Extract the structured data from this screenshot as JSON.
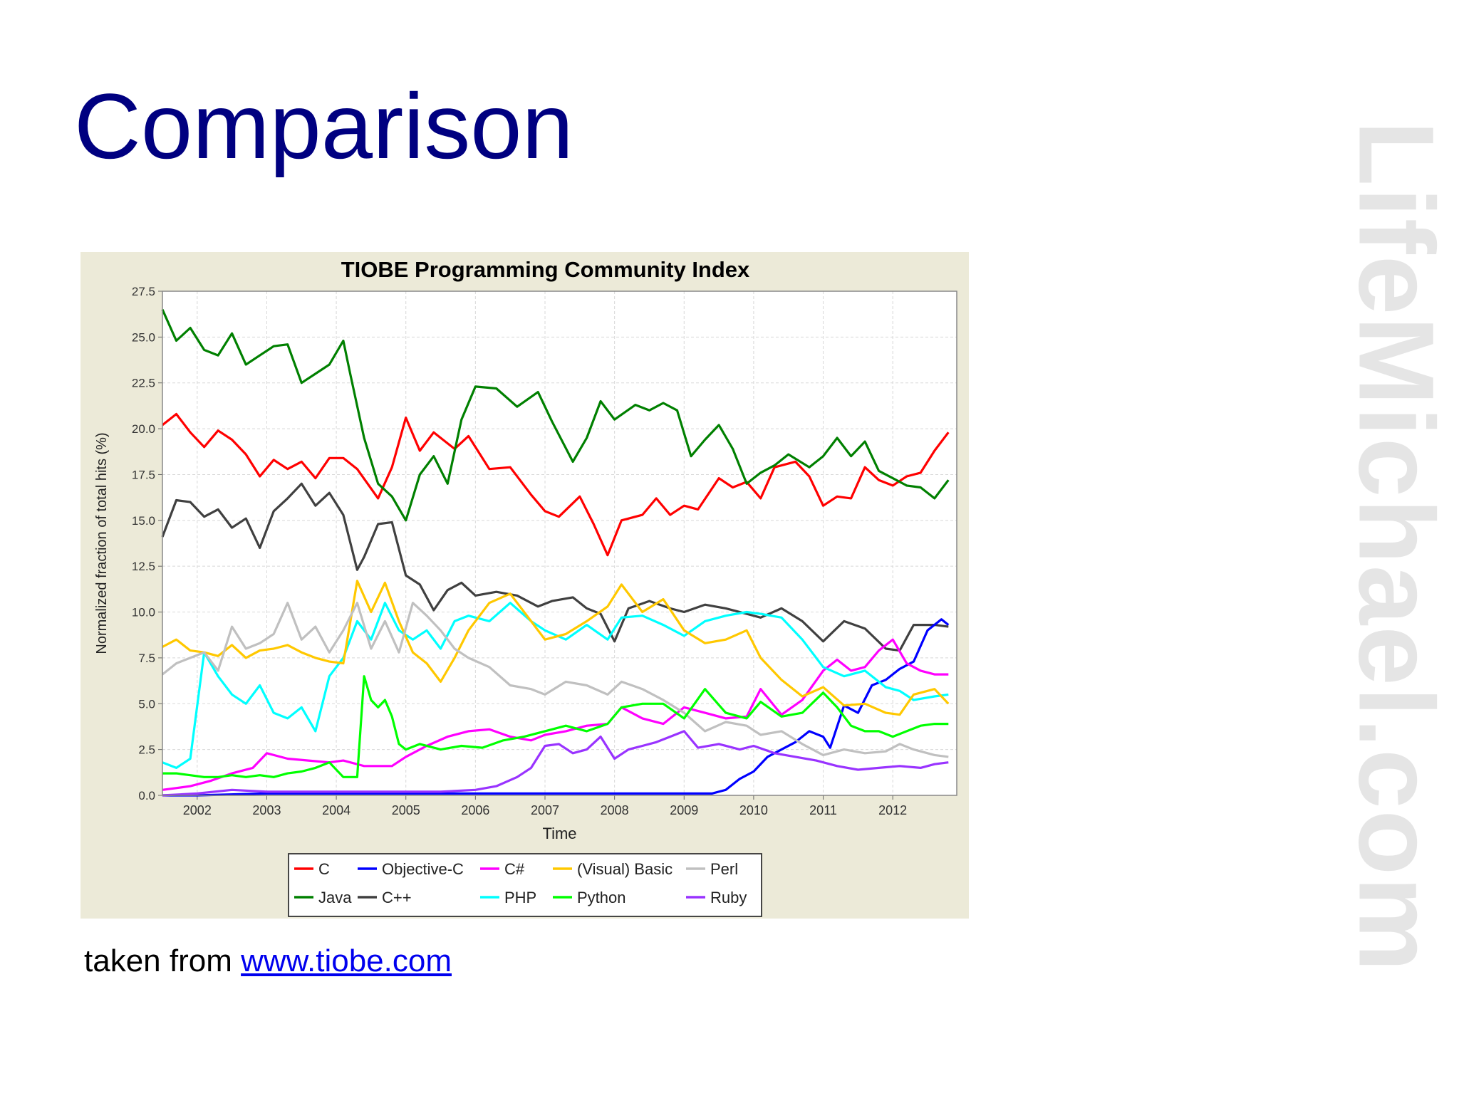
{
  "slide": {
    "title": "Comparison",
    "caption_prefix": "taken from ",
    "caption_link": "www.tiobe.com",
    "watermark": "LifeMichael.com"
  },
  "chart_data": {
    "type": "line",
    "title": "TIOBE Programming Community Index",
    "xlabel": "Time",
    "ylabel": "Normalized fraction of total hits (%)",
    "xlim": [
      2001.5,
      2012.92
    ],
    "ylim": [
      0,
      27.5
    ],
    "x_ticks": [
      "2002",
      "2003",
      "2004",
      "2005",
      "2006",
      "2007",
      "2008",
      "2009",
      "2010",
      "2011",
      "2012"
    ],
    "y_ticks": [
      "0.0",
      "2.5",
      "5.0",
      "7.5",
      "10.0",
      "12.5",
      "15.0",
      "17.5",
      "20.0",
      "22.5",
      "25.0",
      "27.5"
    ],
    "grid": true,
    "legend_position": "bottom",
    "series": [
      {
        "name": "C",
        "color": "#ff0000",
        "x": [
          2001.5,
          2001.7,
          2001.9,
          2002.1,
          2002.3,
          2002.5,
          2002.7,
          2002.9,
          2003.1,
          2003.3,
          2003.5,
          2003.7,
          2003.9,
          2004.1,
          2004.3,
          2004.6,
          2004.8,
          2005.0,
          2005.2,
          2005.4,
          2005.7,
          2005.9,
          2006.2,
          2006.5,
          2006.8,
          2007.0,
          2007.2,
          2007.5,
          2007.7,
          2007.9,
          2008.1,
          2008.4,
          2008.6,
          2008.8,
          2009.0,
          2009.2,
          2009.5,
          2009.7,
          2009.9,
          2010.1,
          2010.3,
          2010.6,
          2010.8,
          2011.0,
          2011.2,
          2011.4,
          2011.6,
          2011.8,
          2012.0,
          2012.2,
          2012.4,
          2012.6,
          2012.8
        ],
        "values": [
          20.2,
          20.8,
          19.8,
          19.0,
          19.9,
          19.4,
          18.6,
          17.4,
          18.3,
          17.8,
          18.2,
          17.3,
          18.4,
          18.4,
          17.8,
          16.2,
          17.9,
          20.6,
          18.8,
          19.8,
          18.9,
          19.6,
          17.8,
          17.9,
          16.4,
          15.5,
          15.2,
          16.3,
          14.8,
          13.1,
          15.0,
          15.3,
          16.2,
          15.3,
          15.8,
          15.6,
          17.3,
          16.8,
          17.1,
          16.2,
          17.9,
          18.2,
          17.4,
          15.8,
          16.3,
          16.2,
          17.9,
          17.2,
          16.9,
          17.4,
          17.6,
          18.8,
          19.8
        ]
      },
      {
        "name": "Java",
        "color": "#008000",
        "x": [
          2001.5,
          2001.7,
          2001.9,
          2002.1,
          2002.3,
          2002.5,
          2002.7,
          2002.9,
          2003.1,
          2003.3,
          2003.5,
          2003.7,
          2003.9,
          2004.1,
          2004.2,
          2004.4,
          2004.6,
          2004.8,
          2005.0,
          2005.2,
          2005.4,
          2005.6,
          2005.8,
          2006.0,
          2006.3,
          2006.6,
          2006.9,
          2007.1,
          2007.4,
          2007.6,
          2007.8,
          2008.0,
          2008.3,
          2008.5,
          2008.7,
          2008.9,
          2009.1,
          2009.3,
          2009.5,
          2009.7,
          2009.9,
          2010.1,
          2010.3,
          2010.5,
          2010.8,
          2011.0,
          2011.2,
          2011.4,
          2011.6,
          2011.8,
          2012.0,
          2012.2,
          2012.4,
          2012.6,
          2012.8
        ],
        "values": [
          26.5,
          24.8,
          25.5,
          24.3,
          24.0,
          25.2,
          23.5,
          24.0,
          24.5,
          24.6,
          22.5,
          23.0,
          23.5,
          24.8,
          23.0,
          19.5,
          17.0,
          16.3,
          15.0,
          17.5,
          18.5,
          17.0,
          20.5,
          22.3,
          22.2,
          21.2,
          22.0,
          20.4,
          18.2,
          19.5,
          21.5,
          20.5,
          21.3,
          21.0,
          21.4,
          21.0,
          18.5,
          19.4,
          20.2,
          18.9,
          17.0,
          17.6,
          18.0,
          18.6,
          17.9,
          18.5,
          19.5,
          18.5,
          19.3,
          17.7,
          17.3,
          16.9,
          16.8,
          16.2,
          17.2
        ]
      },
      {
        "name": "C++",
        "color": "#404040",
        "x": [
          2001.5,
          2001.7,
          2001.9,
          2002.1,
          2002.3,
          2002.5,
          2002.7,
          2002.9,
          2003.1,
          2003.3,
          2003.5,
          2003.7,
          2003.9,
          2004.1,
          2004.3,
          2004.4,
          2004.6,
          2004.8,
          2005.0,
          2005.2,
          2005.4,
          2005.6,
          2005.8,
          2006.0,
          2006.3,
          2006.6,
          2006.9,
          2007.1,
          2007.4,
          2007.6,
          2007.8,
          2008.0,
          2008.2,
          2008.5,
          2008.8,
          2009.0,
          2009.3,
          2009.6,
          2009.9,
          2010.1,
          2010.4,
          2010.7,
          2011.0,
          2011.3,
          2011.6,
          2011.9,
          2012.1,
          2012.3,
          2012.6,
          2012.8
        ],
        "values": [
          14.1,
          16.1,
          16.0,
          15.2,
          15.6,
          14.6,
          15.1,
          13.5,
          15.5,
          16.2,
          17.0,
          15.8,
          16.5,
          15.3,
          12.3,
          13.0,
          14.8,
          14.9,
          12.0,
          11.5,
          10.1,
          11.2,
          11.6,
          10.9,
          11.1,
          10.9,
          10.3,
          10.6,
          10.8,
          10.2,
          9.9,
          8.4,
          10.2,
          10.6,
          10.2,
          10.0,
          10.4,
          10.2,
          9.9,
          9.7,
          10.2,
          9.5,
          8.4,
          9.5,
          9.1,
          8.0,
          7.9,
          9.3,
          9.3,
          9.2
        ]
      },
      {
        "name": "Objective-C",
        "color": "#0000ff",
        "x": [
          2001.5,
          2002.0,
          2003.0,
          2004.0,
          2005.0,
          2006.0,
          2007.0,
          2008.0,
          2008.5,
          2009.0,
          2009.4,
          2009.6,
          2009.8,
          2010.0,
          2010.2,
          2010.4,
          2010.6,
          2010.8,
          2011.0,
          2011.1,
          2011.3,
          2011.5,
          2011.7,
          2011.9,
          2012.1,
          2012.3,
          2012.5,
          2012.7,
          2012.8
        ],
        "values": [
          0.0,
          0.0,
          0.1,
          0.1,
          0.1,
          0.1,
          0.1,
          0.1,
          0.1,
          0.1,
          0.1,
          0.3,
          0.9,
          1.3,
          2.1,
          2.5,
          2.9,
          3.5,
          3.2,
          2.6,
          4.9,
          4.5,
          6.0,
          6.3,
          6.9,
          7.3,
          9.0,
          9.6,
          9.3
        ]
      },
      {
        "name": "C#",
        "color": "#ff00ff",
        "x": [
          2001.5,
          2001.9,
          2002.2,
          2002.5,
          2002.8,
          2003.0,
          2003.3,
          2003.6,
          2003.9,
          2004.1,
          2004.4,
          2004.8,
          2005.0,
          2005.3,
          2005.6,
          2005.9,
          2006.2,
          2006.5,
          2006.8,
          2007.0,
          2007.3,
          2007.6,
          2007.9,
          2008.1,
          2008.4,
          2008.7,
          2009.0,
          2009.3,
          2009.6,
          2009.9,
          2010.1,
          2010.4,
          2010.7,
          2011.0,
          2011.2,
          2011.4,
          2011.6,
          2011.8,
          2012.0,
          2012.2,
          2012.4,
          2012.6,
          2012.8
        ],
        "values": [
          0.3,
          0.5,
          0.8,
          1.2,
          1.5,
          2.3,
          2.0,
          1.9,
          1.8,
          1.9,
          1.6,
          1.6,
          2.1,
          2.7,
          3.2,
          3.5,
          3.6,
          3.2,
          3.0,
          3.3,
          3.5,
          3.8,
          3.9,
          4.8,
          4.2,
          3.9,
          4.8,
          4.5,
          4.2,
          4.3,
          5.8,
          4.4,
          5.2,
          6.8,
          7.4,
          6.8,
          7.0,
          7.9,
          8.5,
          7.2,
          6.8,
          6.6,
          6.6
        ]
      },
      {
        "name": "PHP",
        "color": "#00ffff",
        "x": [
          2001.5,
          2001.7,
          2001.9,
          2002.1,
          2002.3,
          2002.5,
          2002.7,
          2002.9,
          2003.1,
          2003.3,
          2003.5,
          2003.7,
          2003.9,
          2004.1,
          2004.3,
          2004.5,
          2004.7,
          2004.9,
          2005.1,
          2005.3,
          2005.5,
          2005.7,
          2005.9,
          2006.2,
          2006.5,
          2006.8,
          2007.0,
          2007.3,
          2007.6,
          2007.9,
          2008.1,
          2008.4,
          2008.7,
          2009.0,
          2009.3,
          2009.6,
          2009.9,
          2010.1,
          2010.4,
          2010.7,
          2011.0,
          2011.3,
          2011.6,
          2011.9,
          2012.1,
          2012.3,
          2012.6,
          2012.8
        ],
        "values": [
          1.8,
          1.5,
          2.0,
          7.8,
          6.5,
          5.5,
          5.0,
          6.0,
          4.5,
          4.2,
          4.8,
          3.5,
          6.5,
          7.5,
          9.5,
          8.5,
          10.5,
          9.0,
          8.5,
          9.0,
          8.0,
          9.5,
          9.8,
          9.5,
          10.5,
          9.5,
          9.0,
          8.5,
          9.3,
          8.5,
          9.7,
          9.8,
          9.3,
          8.7,
          9.5,
          9.8,
          10.0,
          9.9,
          9.7,
          8.5,
          7.0,
          6.5,
          6.8,
          5.9,
          5.7,
          5.2,
          5.4,
          5.5
        ]
      },
      {
        "name": "(Visual) Basic",
        "color": "#ffc800",
        "x": [
          2001.5,
          2001.7,
          2001.9,
          2002.1,
          2002.3,
          2002.5,
          2002.7,
          2002.9,
          2003.1,
          2003.3,
          2003.5,
          2003.7,
          2003.9,
          2004.1,
          2004.3,
          2004.5,
          2004.7,
          2004.9,
          2005.1,
          2005.3,
          2005.5,
          2005.7,
          2005.9,
          2006.2,
          2006.5,
          2006.8,
          2007.0,
          2007.3,
          2007.6,
          2007.9,
          2008.1,
          2008.4,
          2008.7,
          2009.0,
          2009.3,
          2009.6,
          2009.9,
          2010.1,
          2010.4,
          2010.7,
          2011.0,
          2011.3,
          2011.6,
          2011.9,
          2012.1,
          2012.3,
          2012.6,
          2012.8
        ],
        "values": [
          8.1,
          8.5,
          7.9,
          7.8,
          7.6,
          8.2,
          7.5,
          7.9,
          8.0,
          8.2,
          7.8,
          7.5,
          7.3,
          7.2,
          11.7,
          10.0,
          11.6,
          9.5,
          7.8,
          7.2,
          6.2,
          7.5,
          9.0,
          10.5,
          11.0,
          9.5,
          8.5,
          8.8,
          9.5,
          10.3,
          11.5,
          10.0,
          10.7,
          9.0,
          8.3,
          8.5,
          9.0,
          7.5,
          6.3,
          5.4,
          5.9,
          4.9,
          5.0,
          4.5,
          4.4,
          5.5,
          5.8,
          5.0
        ]
      },
      {
        "name": "Perl",
        "color": "#c0c0c0",
        "x": [
          2001.5,
          2001.7,
          2001.9,
          2002.1,
          2002.3,
          2002.5,
          2002.7,
          2002.9,
          2003.1,
          2003.3,
          2003.5,
          2003.7,
          2003.9,
          2004.1,
          2004.3,
          2004.5,
          2004.7,
          2004.9,
          2005.1,
          2005.3,
          2005.5,
          2005.7,
          2005.9,
          2006.2,
          2006.5,
          2006.8,
          2007.0,
          2007.3,
          2007.6,
          2007.9,
          2008.1,
          2008.4,
          2008.7,
          2009.0,
          2009.3,
          2009.6,
          2009.9,
          2010.1,
          2010.4,
          2010.7,
          2011.0,
          2011.3,
          2011.6,
          2011.9,
          2012.1,
          2012.3,
          2012.6,
          2012.8
        ],
        "values": [
          6.6,
          7.2,
          7.5,
          7.8,
          6.8,
          9.2,
          8.0,
          8.3,
          8.8,
          10.5,
          8.5,
          9.2,
          7.8,
          9.0,
          10.5,
          8.0,
          9.5,
          7.8,
          10.5,
          9.8,
          9.0,
          8.0,
          7.5,
          7.0,
          6.0,
          5.8,
          5.5,
          6.2,
          6.0,
          5.5,
          6.2,
          5.8,
          5.2,
          4.5,
          3.5,
          4.0,
          3.8,
          3.3,
          3.5,
          2.8,
          2.2,
          2.5,
          2.3,
          2.4,
          2.8,
          2.5,
          2.2,
          2.1
        ]
      },
      {
        "name": "Python",
        "color": "#00ff00",
        "x": [
          2001.5,
          2001.7,
          2001.9,
          2002.1,
          2002.3,
          2002.5,
          2002.7,
          2002.9,
          2003.1,
          2003.3,
          2003.5,
          2003.7,
          2003.9,
          2004.1,
          2004.3,
          2004.4,
          2004.5,
          2004.6,
          2004.7,
          2004.8,
          2004.9,
          2005.0,
          2005.2,
          2005.5,
          2005.8,
          2006.1,
          2006.4,
          2006.7,
          2007.0,
          2007.3,
          2007.6,
          2007.9,
          2008.1,
          2008.4,
          2008.7,
          2009.0,
          2009.3,
          2009.6,
          2009.9,
          2010.1,
          2010.4,
          2010.7,
          2011.0,
          2011.2,
          2011.4,
          2011.6,
          2011.8,
          2012.0,
          2012.2,
          2012.4,
          2012.6,
          2012.8
        ],
        "values": [
          1.2,
          1.2,
          1.1,
          1.0,
          1.0,
          1.1,
          1.0,
          1.1,
          1.0,
          1.2,
          1.3,
          1.5,
          1.8,
          1.0,
          1.0,
          6.5,
          5.2,
          4.8,
          5.2,
          4.3,
          2.8,
          2.5,
          2.8,
          2.5,
          2.7,
          2.6,
          3.0,
          3.2,
          3.5,
          3.8,
          3.5,
          3.9,
          4.8,
          5.0,
          5.0,
          4.2,
          5.8,
          4.5,
          4.2,
          5.1,
          4.3,
          4.5,
          5.6,
          4.8,
          3.8,
          3.5,
          3.5,
          3.2,
          3.5,
          3.8,
          3.9,
          3.9
        ]
      },
      {
        "name": "Ruby",
        "color": "#9933ff",
        "x": [
          2001.5,
          2002.0,
          2002.5,
          2003.0,
          2003.5,
          2004.0,
          2004.5,
          2005.0,
          2005.5,
          2006.0,
          2006.3,
          2006.6,
          2006.8,
          2007.0,
          2007.2,
          2007.4,
          2007.6,
          2007.8,
          2008.0,
          2008.2,
          2008.4,
          2008.6,
          2008.8,
          2009.0,
          2009.2,
          2009.5,
          2009.8,
          2010.0,
          2010.3,
          2010.6,
          2010.9,
          2011.2,
          2011.5,
          2011.8,
          2012.1,
          2012.4,
          2012.6,
          2012.8
        ],
        "values": [
          0.0,
          0.1,
          0.3,
          0.2,
          0.2,
          0.2,
          0.2,
          0.2,
          0.2,
          0.3,
          0.5,
          1.0,
          1.5,
          2.7,
          2.8,
          2.3,
          2.5,
          3.2,
          2.0,
          2.5,
          2.7,
          2.9,
          3.2,
          3.5,
          2.6,
          2.8,
          2.5,
          2.7,
          2.3,
          2.1,
          1.9,
          1.6,
          1.4,
          1.5,
          1.6,
          1.5,
          1.7,
          1.8
        ]
      }
    ]
  }
}
